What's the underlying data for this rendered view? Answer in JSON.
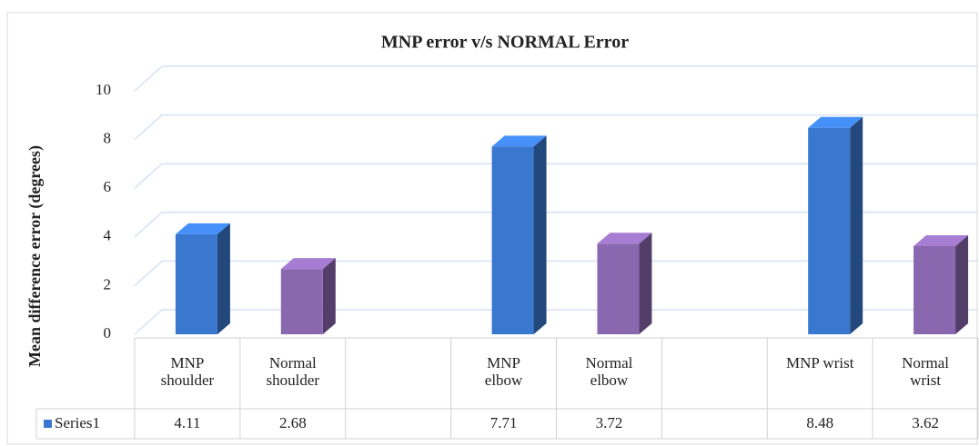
{
  "chart_data": {
    "type": "bar3d",
    "title": "MNP error  v/s NORMAL  Error",
    "y_label": "Mean difference error (degrees)",
    "categories": [
      "MNP shoulder",
      "Normal shoulder",
      null,
      "MNP elbow",
      "Normal elbow",
      null,
      "MNP wrist",
      "Normal wrist"
    ],
    "series": [
      {
        "name": "Series1",
        "color": "#3a78d0",
        "values": [
          4.11,
          2.68,
          null,
          7.71,
          3.72,
          null,
          8.48,
          3.62
        ],
        "colors": [
          "#3a78d0",
          "#8a68b0",
          null,
          "#3a78d0",
          "#8a68b0",
          null,
          "#3a78d0",
          "#8a68b0"
        ]
      }
    ],
    "ylim": [
      0,
      10
    ],
    "yticks": [
      0,
      2,
      4,
      6,
      8,
      10
    ],
    "grid": true,
    "legend": "data-table"
  }
}
